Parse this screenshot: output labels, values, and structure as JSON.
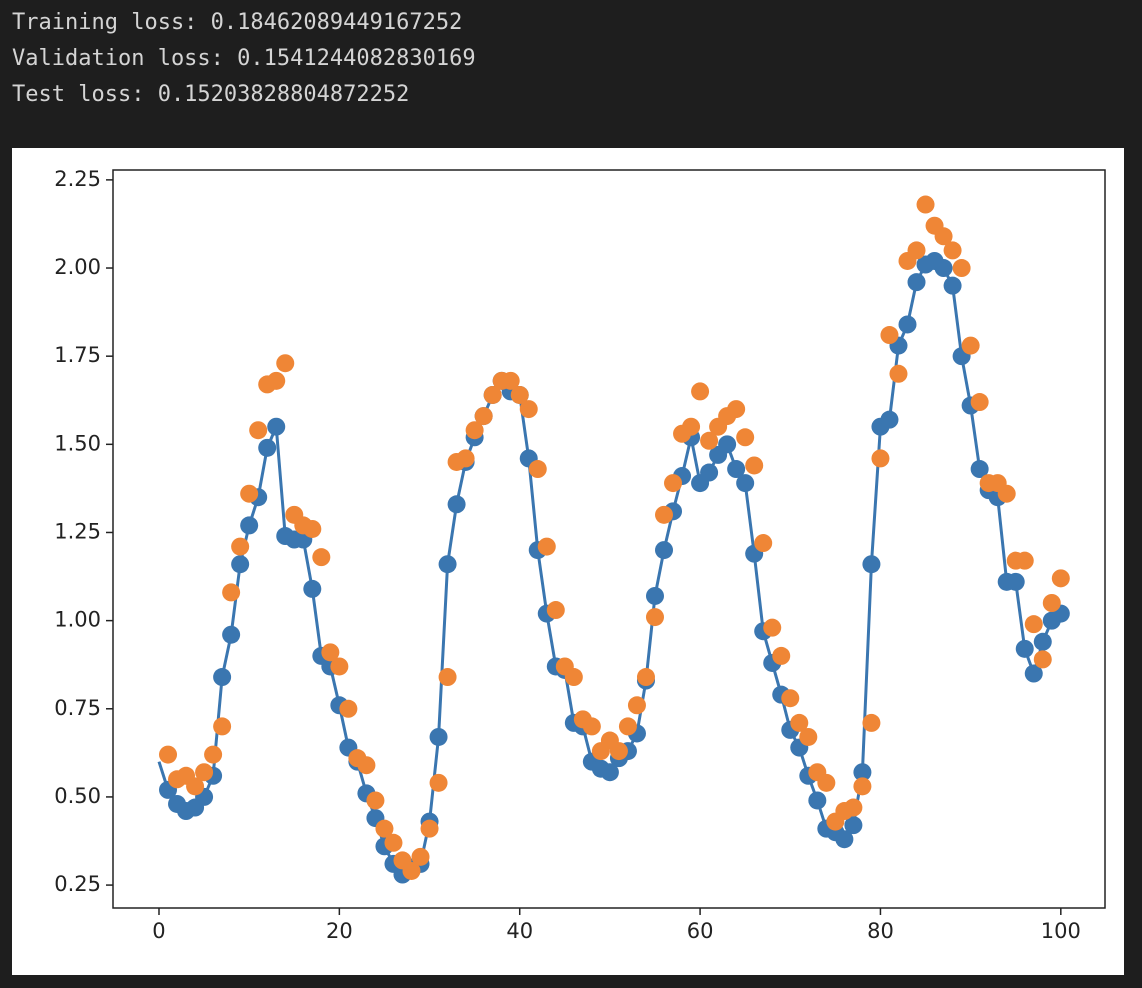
{
  "output_lines": [
    "Training loss: 0.18462089449167252",
    "Validation loss: 0.1541244082830169",
    "Test loss: 0.15203828804872252"
  ],
  "chart_data": {
    "type": "line",
    "xlim": [
      -5.1,
      104.9
    ],
    "ylim": [
      0.185,
      2.278
    ],
    "xticks": [
      0,
      20,
      40,
      60,
      80,
      100
    ],
    "yticks": [
      {
        "value": 0.25,
        "label": "0.25"
      },
      {
        "value": 0.5,
        "label": "0.50"
      },
      {
        "value": 0.75,
        "label": "0.75"
      },
      {
        "value": 1.0,
        "label": "1.00"
      },
      {
        "value": 1.25,
        "label": "1.25"
      },
      {
        "value": 1.5,
        "label": "1.50"
      },
      {
        "value": 1.75,
        "label": "1.75"
      },
      {
        "value": 2.0,
        "label": "2.00"
      },
      {
        "value": 2.25,
        "label": "2.25"
      }
    ],
    "series": [
      {
        "type": "line",
        "color": "#3a76b0",
        "x": [
          0,
          1,
          2,
          3,
          4,
          5,
          6,
          7,
          8,
          9,
          10,
          11,
          12,
          13,
          14,
          15,
          16,
          17,
          18,
          19,
          20,
          21,
          22,
          23,
          24,
          25,
          26,
          27,
          28,
          29,
          30,
          31,
          32,
          33,
          34,
          35,
          36,
          37,
          38,
          39,
          40,
          41,
          42,
          43,
          44,
          45,
          46,
          47,
          48,
          49,
          50,
          51,
          52,
          53,
          54,
          55,
          56,
          57,
          58,
          59,
          60,
          61,
          62,
          63,
          64,
          65,
          66,
          67,
          68,
          69,
          70,
          71,
          72,
          73,
          74,
          75,
          76,
          77,
          78,
          79,
          80,
          81,
          82,
          83,
          84,
          85,
          86,
          87,
          88,
          89,
          90,
          91,
          92,
          93,
          94,
          95,
          96,
          97,
          98,
          99,
          100
        ],
        "values": [
          0.6,
          0.52,
          0.48,
          0.46,
          0.47,
          0.5,
          0.56,
          0.84,
          0.96,
          1.16,
          1.27,
          1.35,
          1.49,
          1.55,
          1.24,
          1.23,
          1.23,
          1.09,
          0.9,
          0.87,
          0.76,
          0.64,
          0.6,
          0.51,
          0.44,
          0.36,
          0.31,
          0.28,
          0.3,
          0.31,
          0.43,
          0.67,
          1.16,
          1.33,
          1.45,
          1.52,
          1.58,
          1.64,
          1.68,
          1.65,
          1.64,
          1.46,
          1.2,
          1.02,
          0.87,
          0.86,
          0.71,
          0.7,
          0.6,
          0.58,
          0.57,
          0.61,
          0.63,
          0.68,
          0.83,
          1.07,
          1.2,
          1.31,
          1.41,
          1.52,
          1.39,
          1.42,
          1.47,
          1.5,
          1.43,
          1.39,
          1.19,
          0.97,
          0.88,
          0.79,
          0.69,
          0.64,
          0.56,
          0.49,
          0.41,
          0.4,
          0.38,
          0.42,
          0.57,
          1.16,
          1.55,
          1.57,
          1.78,
          1.84,
          1.96,
          2.01,
          2.02,
          2.0,
          1.95,
          1.75,
          1.61,
          1.43,
          1.37,
          1.35,
          1.11,
          1.11,
          0.92,
          0.85,
          0.94,
          1.0,
          1.02
        ]
      },
      {
        "type": "scatter",
        "color": "#3a76b0",
        "x": [
          1,
          2,
          3,
          4,
          5,
          6,
          7,
          8,
          9,
          10,
          11,
          12,
          13,
          14,
          15,
          16,
          17,
          18,
          19,
          20,
          21,
          22,
          23,
          24,
          25,
          26,
          27,
          28,
          29,
          30,
          31,
          32,
          33,
          34,
          35,
          36,
          37,
          38,
          39,
          40,
          41,
          42,
          43,
          44,
          45,
          46,
          47,
          48,
          49,
          50,
          51,
          52,
          53,
          54,
          55,
          56,
          57,
          58,
          59,
          60,
          61,
          62,
          63,
          64,
          65,
          66,
          67,
          68,
          69,
          70,
          71,
          72,
          73,
          74,
          75,
          76,
          77,
          78,
          79,
          80,
          81,
          82,
          83,
          84,
          85,
          86,
          87,
          88,
          89,
          90,
          91,
          92,
          93,
          94,
          95,
          96,
          97,
          98,
          99,
          100
        ],
        "values": [
          0.52,
          0.48,
          0.46,
          0.47,
          0.5,
          0.56,
          0.84,
          0.96,
          1.16,
          1.27,
          1.35,
          1.49,
          1.55,
          1.24,
          1.23,
          1.23,
          1.09,
          0.9,
          0.87,
          0.76,
          0.64,
          0.6,
          0.51,
          0.44,
          0.36,
          0.31,
          0.28,
          0.3,
          0.31,
          0.43,
          0.67,
          1.16,
          1.33,
          1.45,
          1.52,
          1.58,
          1.64,
          1.68,
          1.65,
          1.64,
          1.46,
          1.2,
          1.02,
          0.87,
          0.86,
          0.71,
          0.7,
          0.6,
          0.58,
          0.57,
          0.61,
          0.63,
          0.68,
          0.83,
          1.07,
          1.2,
          1.31,
          1.41,
          1.52,
          1.39,
          1.42,
          1.47,
          1.5,
          1.43,
          1.39,
          1.19,
          0.97,
          0.88,
          0.79,
          0.69,
          0.64,
          0.56,
          0.49,
          0.41,
          0.4,
          0.38,
          0.42,
          0.57,
          1.16,
          1.55,
          1.57,
          1.78,
          1.84,
          1.96,
          2.01,
          2.02,
          2.0,
          1.95,
          1.75,
          1.61,
          1.43,
          1.37,
          1.35,
          1.11,
          1.11,
          0.92,
          0.85,
          0.94,
          1.0,
          1.02
        ]
      },
      {
        "type": "scatter",
        "color": "#ef8636",
        "x": [
          1,
          2,
          3,
          4,
          5,
          6,
          7,
          8,
          9,
          10,
          11,
          12,
          13,
          14,
          15,
          16,
          17,
          18,
          19,
          20,
          21,
          22,
          23,
          24,
          25,
          26,
          27,
          28,
          29,
          30,
          31,
          32,
          33,
          34,
          35,
          36,
          37,
          38,
          39,
          40,
          41,
          42,
          43,
          44,
          45,
          46,
          47,
          48,
          49,
          50,
          51,
          52,
          53,
          54,
          55,
          56,
          57,
          58,
          59,
          60,
          61,
          62,
          63,
          64,
          65,
          66,
          67,
          68,
          69,
          70,
          71,
          72,
          73,
          74,
          75,
          76,
          77,
          78,
          79,
          80,
          81,
          82,
          83,
          84,
          85,
          86,
          87,
          88,
          89,
          90,
          91,
          92,
          93,
          94,
          95,
          96,
          97,
          98,
          99,
          100
        ],
        "values": [
          0.62,
          0.55,
          0.56,
          0.53,
          0.57,
          0.62,
          0.7,
          1.08,
          1.21,
          1.36,
          1.54,
          1.67,
          1.68,
          1.73,
          1.3,
          1.27,
          1.26,
          1.18,
          0.91,
          0.87,
          0.75,
          0.61,
          0.59,
          0.49,
          0.41,
          0.37,
          0.32,
          0.29,
          0.33,
          0.41,
          0.54,
          0.84,
          1.45,
          1.46,
          1.54,
          1.58,
          1.64,
          1.68,
          1.68,
          1.64,
          1.6,
          1.43,
          1.21,
          1.03,
          0.87,
          0.84,
          0.72,
          0.7,
          0.63,
          0.66,
          0.63,
          0.7,
          0.76,
          0.84,
          1.01,
          1.3,
          1.39,
          1.53,
          1.55,
          1.65,
          1.51,
          1.55,
          1.58,
          1.6,
          1.52,
          1.44,
          1.22,
          0.98,
          0.9,
          0.78,
          0.71,
          0.67,
          0.57,
          0.54,
          0.43,
          0.46,
          0.47,
          0.53,
          0.71,
          1.46,
          1.81,
          1.7,
          2.02,
          2.05,
          2.18,
          2.12,
          2.09,
          2.05,
          2.0,
          1.78,
          1.62,
          1.39,
          1.39,
          1.36,
          1.17,
          1.17,
          0.99,
          0.89,
          1.05,
          1.12
        ]
      }
    ]
  }
}
